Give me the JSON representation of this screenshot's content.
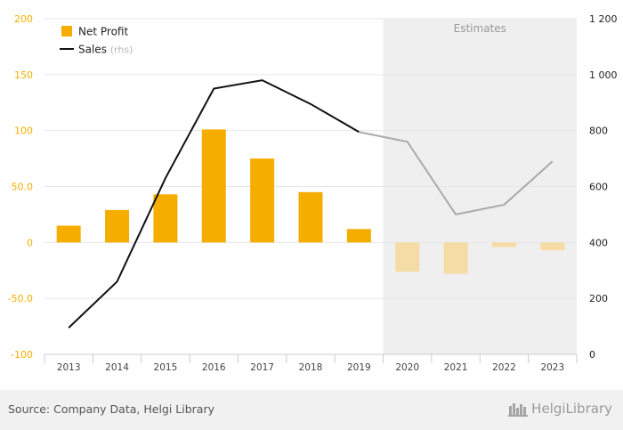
{
  "chart_data": {
    "type": "bar",
    "categories": [
      "2013",
      "2014",
      "2015",
      "2016",
      "2017",
      "2018",
      "2019",
      "2020",
      "2021",
      "2022",
      "2023"
    ],
    "series": [
      {
        "name": "Net Profit",
        "type": "bar",
        "axis": "left",
        "color": "#f5ae00",
        "estimate_color": "#f5dca4",
        "values": [
          15,
          29,
          43,
          101,
          75,
          45,
          12,
          -26,
          -28,
          -4,
          -7
        ]
      },
      {
        "name": "Sales",
        "name_suffix": "(rhs)",
        "type": "line",
        "axis": "right",
        "color": "#111111",
        "estimate_color": "#aaaaaa",
        "values": [
          95,
          260,
          630,
          950,
          980,
          895,
          795,
          760,
          500,
          535,
          690
        ]
      }
    ],
    "left_axis": {
      "ylim": [
        -100,
        200
      ],
      "tick_labels": [
        "-100",
        "-50.0",
        "0",
        "50.0",
        "100",
        "150",
        "200"
      ],
      "tick_values": [
        -100,
        -50,
        0,
        50,
        100,
        150,
        200
      ],
      "color": "#f5ae00"
    },
    "right_axis": {
      "ylim": [
        0,
        1200
      ],
      "tick_labels": [
        "0",
        "200",
        "400",
        "600",
        "800",
        "1 000",
        "1 200"
      ],
      "tick_values": [
        0,
        200,
        400,
        600,
        800,
        1000,
        1200
      ],
      "color": "#222222"
    },
    "estimates_label": "Estimates",
    "estimates_start_index": 7,
    "grid": true,
    "legend_position": "top-left"
  },
  "footer": {
    "source": "Source: Company Data, Helgi Library",
    "brand": "HelgiLibrary"
  }
}
